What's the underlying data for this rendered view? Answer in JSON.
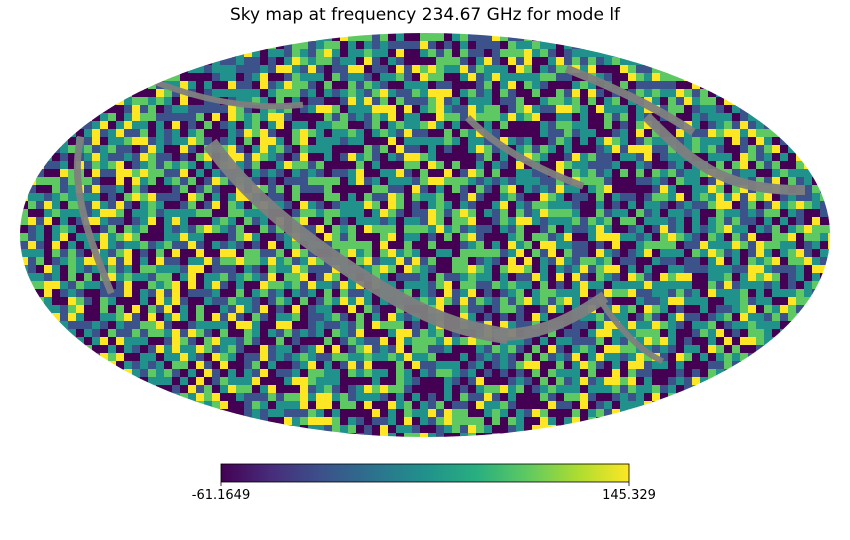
{
  "chart_data": {
    "type": "heatmap",
    "title": "Sky map at frequency 234.67 GHz for mode lf",
    "projection": "mollweide",
    "colormap": "viridis",
    "masked_color": "#808080",
    "colorbar": {
      "min": -61.1649,
      "max": 145.329,
      "min_label": "-61.1649",
      "max_label": "145.329",
      "orientation": "horizontal",
      "placement": "bottom"
    },
    "pixel_value_summary": "random noise map with masked bands"
  }
}
